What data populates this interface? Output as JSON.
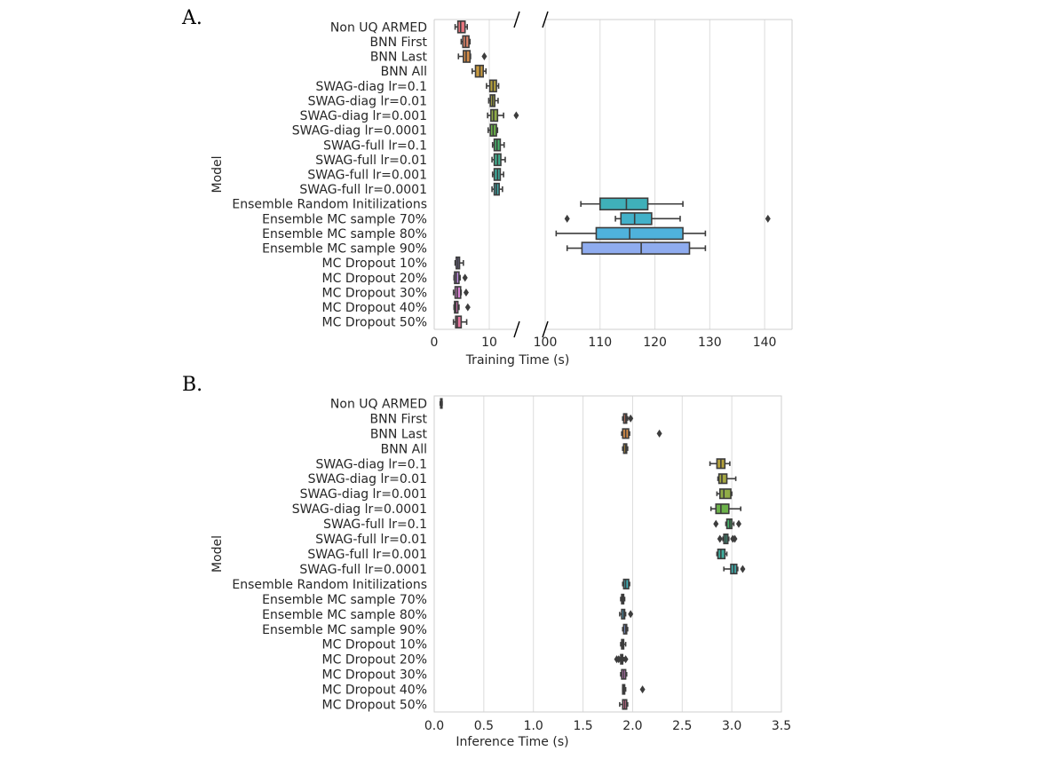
{
  "chart_data": [
    {
      "panel": "A.",
      "type": "boxplot",
      "orientation": "horizontal",
      "xlabel": "Training Time (s)",
      "ylabel": "Model",
      "broken_x_axis": true,
      "xlim_left": [
        0,
        15
      ],
      "xlim_right": [
        100,
        145
      ],
      "xticks_left": [
        0,
        10
      ],
      "xticks_right": [
        100,
        110,
        120,
        130,
        140
      ],
      "grid": true,
      "series": [
        {
          "name": "Non UQ ARMED",
          "color": "#e8767f",
          "whislo": 3.8,
          "q1": 4.3,
          "med": 4.8,
          "q3": 5.6,
          "whishi": 6.0,
          "fliers": []
        },
        {
          "name": "BNN First",
          "color": "#e2876a",
          "whislo": 4.9,
          "q1": 5.2,
          "med": 5.7,
          "q3": 6.3,
          "whishi": 6.5,
          "fliers": []
        },
        {
          "name": "BNN Last",
          "color": "#d78e48",
          "whislo": 4.4,
          "q1": 5.3,
          "med": 5.8,
          "q3": 6.5,
          "whishi": 6.6,
          "fliers": [
            9.1
          ]
        },
        {
          "name": "BNN All",
          "color": "#c99a3e",
          "whislo": 6.9,
          "q1": 7.5,
          "med": 8.3,
          "q3": 8.9,
          "whishi": 9.4,
          "fliers": []
        },
        {
          "name": "SWAG-diag lr=0.1",
          "color": "#b4a13b",
          "whislo": 9.5,
          "q1": 10.1,
          "med": 10.7,
          "q3": 11.3,
          "whishi": 11.7,
          "fliers": []
        },
        {
          "name": "SWAG-diag lr=0.01",
          "color": "#a6a843",
          "whislo": 9.9,
          "q1": 10.2,
          "med": 10.6,
          "q3": 11.0,
          "whishi": 11.6,
          "fliers": []
        },
        {
          "name": "SWAG-diag lr=0.001",
          "color": "#90ac46",
          "whislo": 9.7,
          "q1": 10.3,
          "med": 10.8,
          "q3": 11.5,
          "whishi": 12.6,
          "fliers": [
            14.9
          ]
        },
        {
          "name": "SWAG-diag lr=0.0001",
          "color": "#6cb24a",
          "whislo": 9.8,
          "q1": 10.2,
          "med": 10.7,
          "q3": 11.3,
          "whishi": 11.5,
          "fliers": []
        },
        {
          "name": "SWAG-full lr=0.1",
          "color": "#47b46d",
          "whislo": 10.6,
          "q1": 10.9,
          "med": 11.4,
          "q3": 12.0,
          "whishi": 12.7,
          "fliers": []
        },
        {
          "name": "SWAG-full lr=0.01",
          "color": "#42b090",
          "whislo": 10.5,
          "q1": 10.9,
          "med": 11.5,
          "q3": 12.1,
          "whishi": 12.9,
          "fliers": []
        },
        {
          "name": "SWAG-full lr=0.001",
          "color": "#3fae9f",
          "whislo": 10.6,
          "q1": 10.9,
          "med": 11.5,
          "q3": 12.0,
          "whishi": 12.6,
          "fliers": []
        },
        {
          "name": "SWAG-full lr=0.0001",
          "color": "#3facab",
          "whislo": 10.5,
          "q1": 10.9,
          "med": 11.3,
          "q3": 11.8,
          "whishi": 12.4,
          "fliers": []
        },
        {
          "name": "Ensemble Random Initilizations",
          "color": "#3fb0b9",
          "whislo": 106.5,
          "q1": 110.0,
          "med": 114.8,
          "q3": 118.7,
          "whishi": 125.1,
          "fliers": []
        },
        {
          "name": "Ensemble MC sample 70%",
          "color": "#43b1c9",
          "whislo": 112.8,
          "q1": 113.8,
          "med": 116.3,
          "q3": 119.4,
          "whishi": 124.6,
          "fliers": [
            104.0,
            140.6
          ]
        },
        {
          "name": "Ensemble MC sample 80%",
          "color": "#4fb2dc",
          "whislo": 102.0,
          "q1": 109.3,
          "med": 115.4,
          "q3": 125.1,
          "whishi": 129.2,
          "fliers": []
        },
        {
          "name": "Ensemble MC sample 90%",
          "color": "#8facef",
          "whislo": 104.0,
          "q1": 106.7,
          "med": 117.5,
          "q3": 126.3,
          "whishi": 129.2,
          "fliers": []
        },
        {
          "name": "MC Dropout 10%",
          "color": "#a89aec",
          "whislo": 3.8,
          "q1": 4.0,
          "med": 4.3,
          "q3": 4.6,
          "whishi": 5.3,
          "fliers": []
        },
        {
          "name": "MC Dropout 20%",
          "color": "#c48ee6",
          "whislo": 3.6,
          "q1": 3.7,
          "med": 4.0,
          "q3": 4.5,
          "whishi": 4.7,
          "fliers": [
            5.6
          ]
        },
        {
          "name": "MC Dropout 30%",
          "color": "#dd84d6",
          "whislo": 3.5,
          "q1": 3.8,
          "med": 4.2,
          "q3": 4.8,
          "whishi": 4.9,
          "fliers": [
            5.8
          ]
        },
        {
          "name": "MC Dropout 40%",
          "color": "#e47bc0",
          "whislo": 3.6,
          "q1": 3.7,
          "med": 3.9,
          "q3": 4.3,
          "whishi": 4.5,
          "fliers": [
            6.1
          ]
        },
        {
          "name": "MC Dropout 50%",
          "color": "#e8769f",
          "whislo": 3.5,
          "q1": 3.9,
          "med": 4.2,
          "q3": 4.9,
          "whishi": 5.9,
          "fliers": []
        }
      ]
    },
    {
      "panel": "B.",
      "type": "boxplot",
      "orientation": "horizontal",
      "xlabel": "Inference Time (s)",
      "ylabel": "Model",
      "xlim": [
        0,
        3.5
      ],
      "xticks": [
        0.0,
        0.5,
        1.0,
        1.5,
        2.0,
        2.5,
        3.0,
        3.5
      ],
      "xtick_labels": [
        "0.0",
        "0.5",
        "1.0",
        "1.5",
        "2.0",
        "2.5",
        "3.0",
        "3.5"
      ],
      "grid": true,
      "series": [
        {
          "name": "Non UQ ARMED",
          "color": "#e8767f",
          "whislo": 0.06,
          "q1": 0.065,
          "med": 0.07,
          "q3": 0.075,
          "whishi": 0.08,
          "fliers": []
        },
        {
          "name": "BNN First",
          "color": "#e2876a",
          "whislo": 1.9,
          "q1": 1.91,
          "med": 1.93,
          "q3": 1.94,
          "whishi": 1.95,
          "fliers": [
            1.98
          ]
        },
        {
          "name": "BNN Last",
          "color": "#d78e48",
          "whislo": 1.89,
          "q1": 1.9,
          "med": 1.93,
          "q3": 1.96,
          "whishi": 1.97,
          "fliers": [
            2.27
          ]
        },
        {
          "name": "BNN All",
          "color": "#c99a3e",
          "whislo": 1.9,
          "q1": 1.91,
          "med": 1.93,
          "q3": 1.94,
          "whishi": 1.95,
          "fliers": []
        },
        {
          "name": "SWAG-diag lr=0.1",
          "color": "#b4a13b",
          "whislo": 2.78,
          "q1": 2.85,
          "med": 2.89,
          "q3": 2.93,
          "whishi": 2.98,
          "fliers": []
        },
        {
          "name": "SWAG-diag lr=0.01",
          "color": "#a6a843",
          "whislo": 2.86,
          "q1": 2.87,
          "med": 2.9,
          "q3": 2.95,
          "whishi": 3.04,
          "fliers": []
        },
        {
          "name": "SWAG-diag lr=0.001",
          "color": "#90ac46",
          "whislo": 2.85,
          "q1": 2.88,
          "med": 2.92,
          "q3": 2.99,
          "whishi": 3.0,
          "fliers": []
        },
        {
          "name": "SWAG-diag lr=0.0001",
          "color": "#6cb24a",
          "whislo": 2.79,
          "q1": 2.84,
          "med": 2.89,
          "q3": 2.97,
          "whishi": 3.09,
          "fliers": []
        },
        {
          "name": "SWAG-full lr=0.1",
          "color": "#47b46d",
          "whislo": 2.94,
          "q1": 2.95,
          "med": 2.98,
          "q3": 3.0,
          "whishi": 3.02,
          "fliers": [
            2.84,
            3.07
          ]
        },
        {
          "name": "SWAG-full lr=0.01",
          "color": "#42b090",
          "whislo": 2.91,
          "q1": 2.92,
          "med": 2.94,
          "q3": 2.96,
          "whishi": 2.97,
          "fliers": [
            2.88,
            3.01,
            3.03
          ]
        },
        {
          "name": "SWAG-full lr=0.001",
          "color": "#3fae9f",
          "whislo": 2.85,
          "q1": 2.86,
          "med": 2.89,
          "q3": 2.93,
          "whishi": 2.95,
          "fliers": []
        },
        {
          "name": "SWAG-full lr=0.0001",
          "color": "#3facab",
          "whislo": 2.92,
          "q1": 2.99,
          "med": 3.02,
          "q3": 3.05,
          "whishi": 3.06,
          "fliers": [
            3.11
          ]
        },
        {
          "name": "Ensemble Random Initilizations",
          "color": "#3fb0b9",
          "whislo": 1.9,
          "q1": 1.91,
          "med": 1.93,
          "q3": 1.96,
          "whishi": 1.97,
          "fliers": []
        },
        {
          "name": "Ensemble MC sample 70%",
          "color": "#43b1c9",
          "whislo": 1.88,
          "q1": 1.89,
          "med": 1.9,
          "q3": 1.91,
          "whishi": 1.92,
          "fliers": []
        },
        {
          "name": "Ensemble MC sample 80%",
          "color": "#4fb2dc",
          "whislo": 1.87,
          "q1": 1.89,
          "med": 1.91,
          "q3": 1.92,
          "whishi": 1.93,
          "fliers": [
            1.98
          ]
        },
        {
          "name": "Ensemble MC sample 90%",
          "color": "#8facef",
          "whislo": 1.9,
          "q1": 1.91,
          "med": 1.93,
          "q3": 1.94,
          "whishi": 1.95,
          "fliers": []
        },
        {
          "name": "MC Dropout 10%",
          "color": "#a89aec",
          "whislo": 1.88,
          "q1": 1.89,
          "med": 1.9,
          "q3": 1.91,
          "whishi": 1.93,
          "fliers": []
        },
        {
          "name": "MC Dropout 20%",
          "color": "#c48ee6",
          "whislo": 1.87,
          "q1": 1.88,
          "med": 1.89,
          "q3": 1.9,
          "whishi": 1.91,
          "fliers": [
            1.84,
            1.86,
            1.93
          ]
        },
        {
          "name": "MC Dropout 30%",
          "color": "#dd84d6",
          "whislo": 1.88,
          "q1": 1.89,
          "med": 1.91,
          "q3": 1.93,
          "whishi": 1.94,
          "fliers": []
        },
        {
          "name": "MC Dropout 40%",
          "color": "#e47bc0",
          "whislo": 1.9,
          "q1": 1.9,
          "med": 1.91,
          "q3": 1.92,
          "whishi": 1.93,
          "fliers": [
            2.1
          ]
        },
        {
          "name": "MC Dropout 50%",
          "color": "#e8769f",
          "whislo": 1.87,
          "q1": 1.9,
          "med": 1.92,
          "q3": 1.94,
          "whishi": 1.95,
          "fliers": []
        }
      ]
    }
  ]
}
